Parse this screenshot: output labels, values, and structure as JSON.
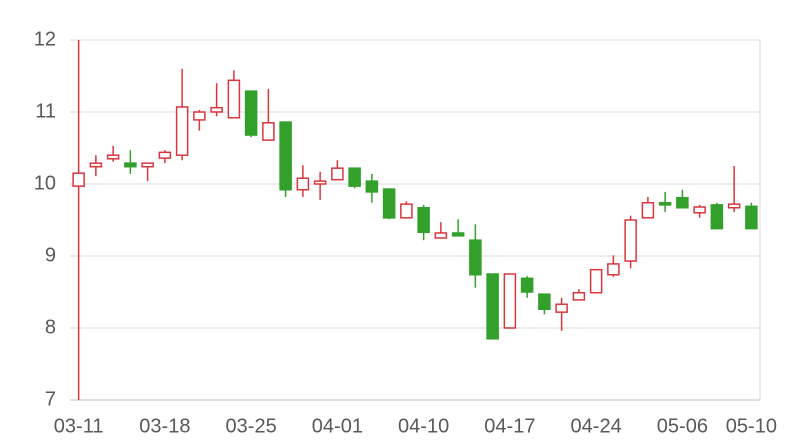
{
  "chart_data": {
    "type": "candlestick",
    "categories": [
      "03-11",
      null,
      null,
      null,
      null,
      "03-18",
      null,
      null,
      null,
      null,
      "03-25",
      null,
      null,
      null,
      null,
      "04-01",
      null,
      null,
      null,
      null,
      "04-10",
      null,
      null,
      null,
      null,
      "04-17",
      null,
      null,
      null,
      null,
      "04-24",
      null,
      null,
      null,
      null,
      "05-06",
      null,
      null,
      null,
      "05-10"
    ],
    "open": [
      9.97,
      10.24,
      10.35,
      10.29,
      10.24,
      10.36,
      10.4,
      10.89,
      11.0,
      10.92,
      11.29,
      10.61,
      10.86,
      9.92,
      10.0,
      10.06,
      10.22,
      10.04,
      9.93,
      9.53,
      9.67,
      9.25,
      9.32,
      9.22,
      8.75,
      8.0,
      8.69,
      8.47,
      8.22,
      8.39,
      8.49,
      8.74,
      8.93,
      9.53,
      9.74,
      9.81,
      9.6,
      9.71,
      9.67,
      9.69
    ],
    "high": [
      12,
      10.4,
      10.53,
      10.47,
      10.29,
      10.47,
      11.6,
      11.03,
      11.4,
      11.58,
      11.29,
      11.32,
      10.86,
      10.26,
      10.17,
      10.33,
      10.22,
      10.14,
      9.93,
      9.76,
      9.71,
      9.47,
      9.51,
      9.44,
      8.75,
      8.75,
      8.72,
      8.47,
      8.42,
      8.54,
      8.81,
      9.01,
      9.56,
      9.82,
      9.89,
      9.92,
      9.71,
      9.74,
      10.25,
      9.74
    ],
    "low": [
      7,
      10.11,
      10.31,
      10.14,
      10.04,
      10.29,
      10.33,
      10.74,
      10.94,
      10.92,
      10.65,
      10.61,
      9.82,
      9.82,
      9.78,
      10.06,
      9.94,
      9.74,
      9.51,
      9.53,
      9.22,
      9.25,
      9.28,
      8.56,
      7.85,
      8.0,
      8.42,
      8.19,
      7.96,
      8.39,
      8.49,
      8.71,
      8.83,
      9.53,
      9.61,
      9.67,
      9.53,
      9.38,
      9.61,
      9.38
    ],
    "close": [
      10.15,
      10.29,
      10.4,
      10.24,
      10.29,
      10.44,
      11.07,
      11.0,
      11.06,
      11.44,
      10.68,
      10.85,
      9.92,
      10.08,
      10.04,
      10.22,
      9.97,
      9.89,
      9.53,
      9.72,
      9.33,
      9.32,
      9.28,
      8.74,
      7.85,
      8.75,
      8.5,
      8.26,
      8.33,
      8.49,
      8.81,
      8.89,
      9.5,
      9.74,
      9.71,
      9.67,
      9.68,
      9.38,
      9.72,
      9.38
    ],
    "up_color": "#d9363e",
    "down_color": "#33a02c",
    "ylim": [
      7,
      12
    ],
    "yticks": [
      7,
      8,
      9,
      10,
      11,
      12
    ],
    "grid": true
  }
}
